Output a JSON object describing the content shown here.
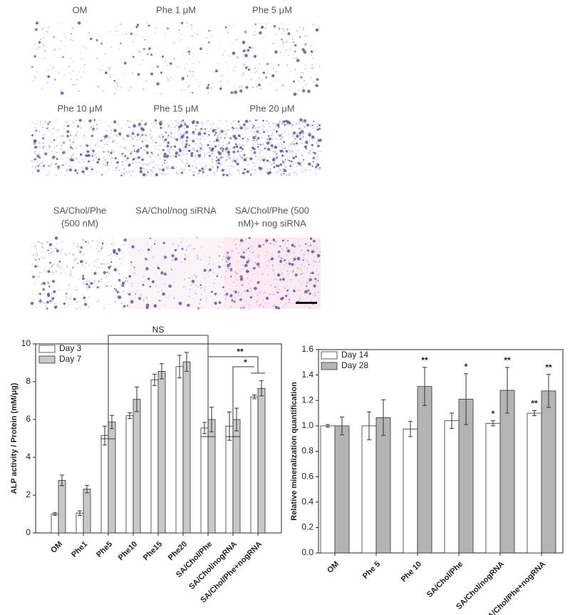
{
  "panels": {
    "labels": [
      [
        "OM"
      ],
      [
        "Phe  1 μM"
      ],
      [
        "Phe 5 μM"
      ],
      [
        "Phe  10 μM"
      ],
      [
        "Phe 15 μM"
      ],
      [
        "Phe 20 μM"
      ],
      [
        "SA/Chol/Phe",
        "(500 nM)"
      ],
      [
        "SA/Chol/nog siRNA"
      ],
      [
        "SA/Chol/Phe (500",
        "nM)+ nog siRNA"
      ]
    ]
  },
  "chart_data": [
    {
      "type": "bar",
      "ylabel": "ALP activity / Protein (mM/μg)",
      "categories": [
        "OM",
        "Phe1",
        "Phe5",
        "Phe10",
        "Phe15",
        "Phe20",
        "SA/Chol/Phe",
        "SA/Chol/nogRNA",
        "SA/Chol/Phe+nogRNA"
      ],
      "series": [
        {
          "name": "Day 3",
          "color": "#ffffff",
          "values": [
            1.0,
            1.05,
            5.15,
            6.2,
            8.1,
            8.8,
            5.55,
            5.65,
            7.2
          ],
          "errors": [
            0.07,
            0.12,
            0.5,
            0.15,
            0.3,
            0.6,
            0.3,
            0.75,
            0.1
          ]
        },
        {
          "name": "Day 7",
          "color": "#c8c8c8",
          "values": [
            2.78,
            2.32,
            5.87,
            7.07,
            8.55,
            9.05,
            6.0,
            6.0,
            7.65
          ],
          "errors": [
            0.28,
            0.2,
            0.35,
            0.65,
            0.4,
            0.5,
            0.65,
            0.6,
            0.4
          ]
        }
      ],
      "ylim": [
        0,
        10
      ],
      "yticks": [
        0,
        2,
        4,
        6,
        8,
        10
      ],
      "legend": "upper left",
      "annotations": [
        "NS",
        "**",
        "*"
      ]
    },
    {
      "type": "bar",
      "ylabel": "Relative mineralization quantification",
      "categories": [
        "OM",
        "Phe 5",
        "Phe 10",
        "SA/Chol/Phe",
        "SA/Chol/nogRNA",
        "SA/Chol/Phe+nogRNA"
      ],
      "series": [
        {
          "name": "Day 14",
          "color": "#ffffff",
          "values": [
            1.0,
            1.0,
            0.975,
            1.04,
            1.02,
            1.1
          ],
          "errors": [
            0.01,
            0.11,
            0.06,
            0.06,
            0.02,
            0.02
          ],
          "significance": [
            null,
            null,
            null,
            null,
            "*",
            "**"
          ]
        },
        {
          "name": "Day 28",
          "color": "#b4b4b4",
          "values": [
            1.0,
            1.065,
            1.31,
            1.21,
            1.28,
            1.275
          ],
          "errors": [
            0.07,
            0.14,
            0.15,
            0.2,
            0.18,
            0.13
          ],
          "significance": [
            null,
            null,
            "**",
            "*",
            "**",
            "**"
          ]
        }
      ],
      "ylim": [
        0,
        1.6
      ],
      "yticks": [
        {
          "value": 0,
          "label": "0.0"
        },
        {
          "value": 0.2,
          "label": "0.2"
        },
        {
          "value": 0.4,
          "label": "0.4"
        },
        {
          "value": 0.6,
          "label": "0.6"
        },
        {
          "value": 0.8,
          "label": "0.8"
        },
        {
          "value": 1,
          "label": "1.0"
        },
        {
          "value": 1.2,
          "label": "1.2"
        },
        {
          "value": 1.4,
          "label": "1.4"
        },
        {
          "value": 1.6,
          "label": "1.6"
        }
      ],
      "legend": "upper left"
    }
  ]
}
